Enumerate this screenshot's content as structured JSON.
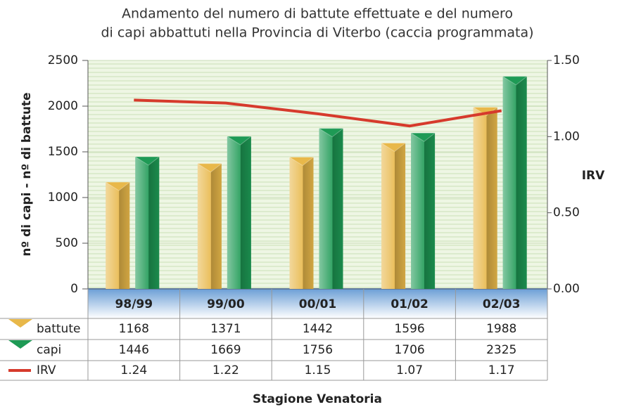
{
  "chart_data": {
    "type": "bar",
    "title": [
      "Andamento del numero di battute effettuate e del numero",
      "di capi abbattuti nella Provincia di Viterbo (caccia programmata)"
    ],
    "categories": [
      "98/99",
      "99/00",
      "00/01",
      "01/02",
      "02/03"
    ],
    "series": [
      {
        "name": "battute",
        "type": "bar",
        "color": "#e8b84a",
        "values": [
          1168,
          1371,
          1442,
          1596,
          1988
        ]
      },
      {
        "name": "capi",
        "type": "bar",
        "color": "#1e9a55",
        "values": [
          1446,
          1669,
          1756,
          1706,
          2325
        ]
      },
      {
        "name": "IRV",
        "type": "line",
        "axis": "y2",
        "color": "#d63a2c",
        "values": [
          1.24,
          1.22,
          1.15,
          1.07,
          1.17
        ]
      }
    ],
    "ylabel": "nº di capi - nº di battute",
    "y2label": "IRV",
    "xlabel": "Stagione Venatoria",
    "ylim": [
      0,
      2500
    ],
    "yticks": [
      0,
      500,
      1000,
      1500,
      2000,
      2500
    ],
    "y2lim": [
      0,
      1.5
    ],
    "y2ticks": [
      {
        "value": 0,
        "label": "0.00"
      },
      {
        "value": 0.5,
        "label": "0.50"
      },
      {
        "value": 1,
        "label": "1.00"
      },
      {
        "value": 1.5,
        "label": "1.50"
      }
    ],
    "grid": true
  }
}
